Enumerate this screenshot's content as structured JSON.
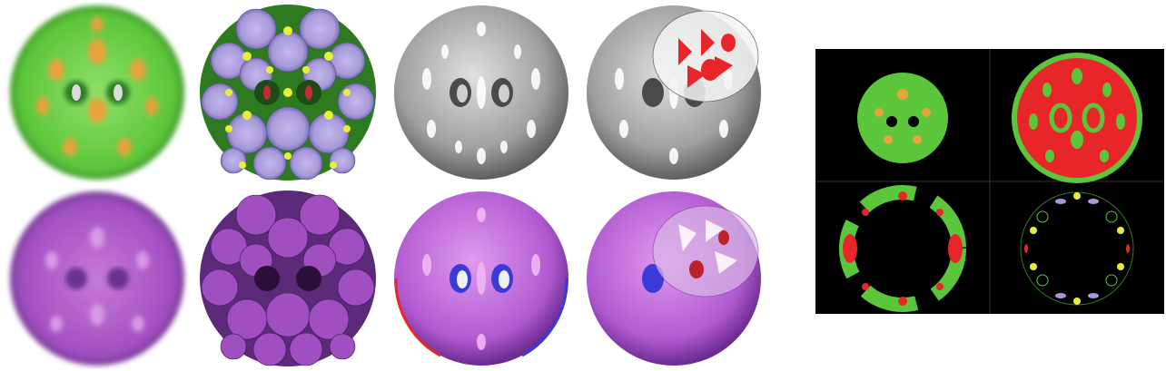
{
  "figure": {
    "colors": {
      "green": "#5cc63a",
      "dark_green": "#2e7a20",
      "orange": "#e8a23a",
      "lavender": "#a79ad8",
      "yellow": "#e8ef3a",
      "red": "#e8262a",
      "gray": "#9a9a9a",
      "purple": "#a04fc0",
      "magenta": "#d66ad8",
      "blue": "#3a3ad8",
      "black": "#000000"
    },
    "renders": [
      {
        "style": "green-orange-blur"
      },
      {
        "style": "green-lavender-lobes"
      },
      {
        "style": "gray-surface"
      },
      {
        "style": "gray-surface-cutaway"
      },
      {
        "style": "purple-blur"
      },
      {
        "style": "purple-lobes"
      },
      {
        "style": "purple-surface"
      },
      {
        "style": "purple-surface-cutaway"
      }
    ],
    "slices": [
      {
        "style": "green-small-ball"
      },
      {
        "style": "red-large-ball"
      },
      {
        "style": "green-ring-cross-section"
      },
      {
        "style": "contour-ring-cross-section"
      }
    ]
  }
}
